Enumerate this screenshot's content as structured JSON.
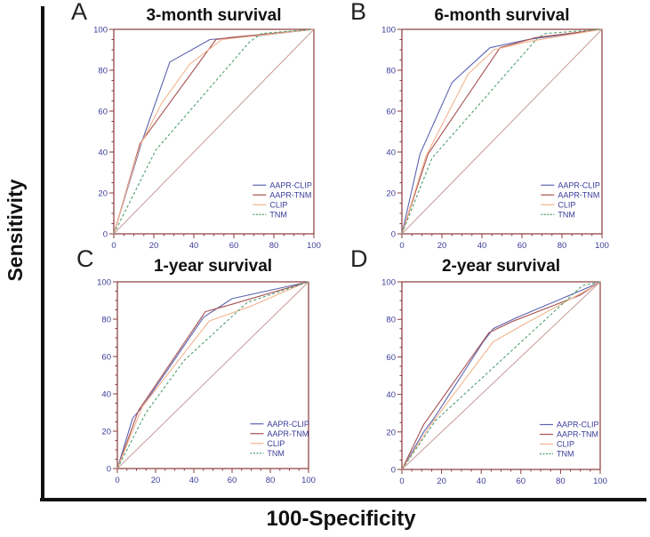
{
  "figure": {
    "y_axis_label": "Sensitivity",
    "x_axis_label": "100-Specificity"
  },
  "colors": {
    "frame": "#8a3a3a",
    "tick_label": "#3c3c99",
    "legend_text": "#3c3c99",
    "axis_black": "#111111",
    "aapr_clip": "#5c63b0",
    "aapr_tnm": "#a85252",
    "clip": "#f2b48e",
    "tnm": "#4f9e6e",
    "reference": "#c59a9a"
  },
  "chart_data": [
    {
      "type": "line",
      "panel_label": "A",
      "title": "3-month survival",
      "xlim": [
        0,
        100
      ],
      "ylim": [
        0,
        100
      ],
      "ticks": [
        0,
        20,
        40,
        60,
        80,
        100
      ],
      "grid": false,
      "legend_position": "lower-right",
      "series": [
        {
          "name": "AAPR-CLIP",
          "color": "#5c63b0",
          "style": "solid",
          "in_legend": true,
          "points": [
            [
              0,
              0
            ],
            [
              14,
              45
            ],
            [
              28,
              84
            ],
            [
              48,
              95
            ],
            [
              73,
              97
            ],
            [
              100,
              100
            ]
          ]
        },
        {
          "name": "AAPR-TNM",
          "color": "#a85252",
          "style": "solid",
          "in_legend": true,
          "points": [
            [
              0,
              0
            ],
            [
              13,
              44
            ],
            [
              51,
              95
            ],
            [
              58,
              96
            ],
            [
              100,
              100
            ]
          ]
        },
        {
          "name": "CLIP",
          "color": "#f2b48e",
          "style": "solid",
          "in_legend": true,
          "points": [
            [
              0,
              0
            ],
            [
              13,
              43
            ],
            [
              24,
              64
            ],
            [
              38,
              83
            ],
            [
              54,
              95
            ],
            [
              100,
              100
            ]
          ]
        },
        {
          "name": "TNM",
          "color": "#4f9e6e",
          "style": "dashed",
          "in_legend": true,
          "points": [
            [
              0,
              0
            ],
            [
              21,
              41
            ],
            [
              68,
              94
            ],
            [
              74,
              98
            ],
            [
              100,
              100
            ]
          ]
        },
        {
          "name": "reference",
          "color": "#c59a9a",
          "style": "solid",
          "in_legend": false,
          "points": [
            [
              0,
              0
            ],
            [
              100,
              100
            ]
          ]
        }
      ]
    },
    {
      "type": "line",
      "panel_label": "B",
      "title": "6-month survival",
      "xlim": [
        0,
        100
      ],
      "ylim": [
        0,
        100
      ],
      "ticks": [
        0,
        20,
        40,
        60,
        80,
        100
      ],
      "grid": false,
      "legend_position": "lower-right",
      "series": [
        {
          "name": "AAPR-CLIP",
          "color": "#5c63b0",
          "style": "solid",
          "in_legend": true,
          "points": [
            [
              0,
              0
            ],
            [
              9,
              39
            ],
            [
              25,
              74
            ],
            [
              44,
              91
            ],
            [
              63,
              95
            ],
            [
              100,
              100
            ]
          ]
        },
        {
          "name": "AAPR-TNM",
          "color": "#a85252",
          "style": "solid",
          "in_legend": true,
          "points": [
            [
              0,
              0
            ],
            [
              13,
              39
            ],
            [
              49,
              91
            ],
            [
              67,
              96
            ],
            [
              100,
              100
            ]
          ]
        },
        {
          "name": "CLIP",
          "color": "#f2b48e",
          "style": "solid",
          "in_legend": true,
          "points": [
            [
              0,
              0
            ],
            [
              12,
              38
            ],
            [
              33,
              78
            ],
            [
              46,
              90
            ],
            [
              63,
              94
            ],
            [
              100,
              100
            ]
          ]
        },
        {
          "name": "TNM",
          "color": "#4f9e6e",
          "style": "dashed",
          "in_legend": true,
          "points": [
            [
              0,
              0
            ],
            [
              15,
              37
            ],
            [
              68,
              96
            ],
            [
              72,
              98
            ],
            [
              100,
              100
            ]
          ]
        },
        {
          "name": "reference",
          "color": "#c59a9a",
          "style": "solid",
          "in_legend": false,
          "points": [
            [
              0,
              0
            ],
            [
              100,
              100
            ]
          ]
        }
      ]
    },
    {
      "type": "line",
      "panel_label": "C",
      "title": "1-year survival",
      "xlim": [
        0,
        100
      ],
      "ylim": [
        0,
        100
      ],
      "ticks": [
        0,
        20,
        40,
        60,
        80,
        100
      ],
      "grid": false,
      "legend_position": "lower-right",
      "series": [
        {
          "name": "AAPR-CLIP",
          "color": "#5c63b0",
          "style": "solid",
          "in_legend": true,
          "points": [
            [
              0,
              0
            ],
            [
              8,
              27
            ],
            [
              13,
              33
            ],
            [
              45,
              81
            ],
            [
              60,
              91
            ],
            [
              100,
              100
            ]
          ]
        },
        {
          "name": "AAPR-TNM",
          "color": "#a85252",
          "style": "solid",
          "in_legend": true,
          "points": [
            [
              0,
              0
            ],
            [
              11,
              31
            ],
            [
              46,
              84
            ],
            [
              60,
              88
            ],
            [
              100,
              100
            ]
          ]
        },
        {
          "name": "CLIP",
          "color": "#f2b48e",
          "style": "solid",
          "in_legend": true,
          "points": [
            [
              0,
              0
            ],
            [
              13,
              33
            ],
            [
              48,
              79
            ],
            [
              70,
              87
            ],
            [
              97,
              99
            ],
            [
              100,
              100
            ]
          ]
        },
        {
          "name": "TNM",
          "color": "#4f9e6e",
          "style": "dashed",
          "in_legend": true,
          "points": [
            [
              0,
              0
            ],
            [
              15,
              30
            ],
            [
              35,
              58
            ],
            [
              68,
              89
            ],
            [
              100,
              100
            ]
          ]
        },
        {
          "name": "reference",
          "color": "#c59a9a",
          "style": "solid",
          "in_legend": false,
          "points": [
            [
              0,
              0
            ],
            [
              100,
              100
            ]
          ]
        }
      ]
    },
    {
      "type": "line",
      "panel_label": "D",
      "title": "2-year survival",
      "xlim": [
        0,
        100
      ],
      "ylim": [
        0,
        100
      ],
      "ticks": [
        0,
        20,
        40,
        60,
        80,
        100
      ],
      "grid": false,
      "legend_position": "lower-right",
      "series": [
        {
          "name": "AAPR-CLIP",
          "color": "#5c63b0",
          "style": "solid",
          "in_legend": true,
          "points": [
            [
              0,
              0
            ],
            [
              11,
              20
            ],
            [
              16,
              27
            ],
            [
              41,
              68
            ],
            [
              46,
              75
            ],
            [
              58,
              81
            ],
            [
              94,
              97
            ],
            [
              100,
              100
            ]
          ]
        },
        {
          "name": "AAPR-TNM",
          "color": "#a85252",
          "style": "solid",
          "in_legend": true,
          "points": [
            [
              0,
              0
            ],
            [
              11,
              24
            ],
            [
              44,
              73
            ],
            [
              56,
              79
            ],
            [
              90,
              93
            ],
            [
              100,
              100
            ]
          ]
        },
        {
          "name": "CLIP",
          "color": "#f2b48e",
          "style": "solid",
          "in_legend": true,
          "points": [
            [
              0,
              0
            ],
            [
              14,
              23
            ],
            [
              46,
              68
            ],
            [
              61,
              77
            ],
            [
              94,
              96
            ],
            [
              100,
              100
            ]
          ]
        },
        {
          "name": "TNM",
          "color": "#4f9e6e",
          "style": "dashed",
          "in_legend": true,
          "points": [
            [
              0,
              0
            ],
            [
              17,
              26
            ],
            [
              55,
              63
            ],
            [
              91,
              98
            ],
            [
              100,
              100
            ]
          ]
        },
        {
          "name": "reference",
          "color": "#c59a9a",
          "style": "solid",
          "in_legend": false,
          "points": [
            [
              0,
              0
            ],
            [
              100,
              100
            ]
          ]
        }
      ]
    }
  ]
}
